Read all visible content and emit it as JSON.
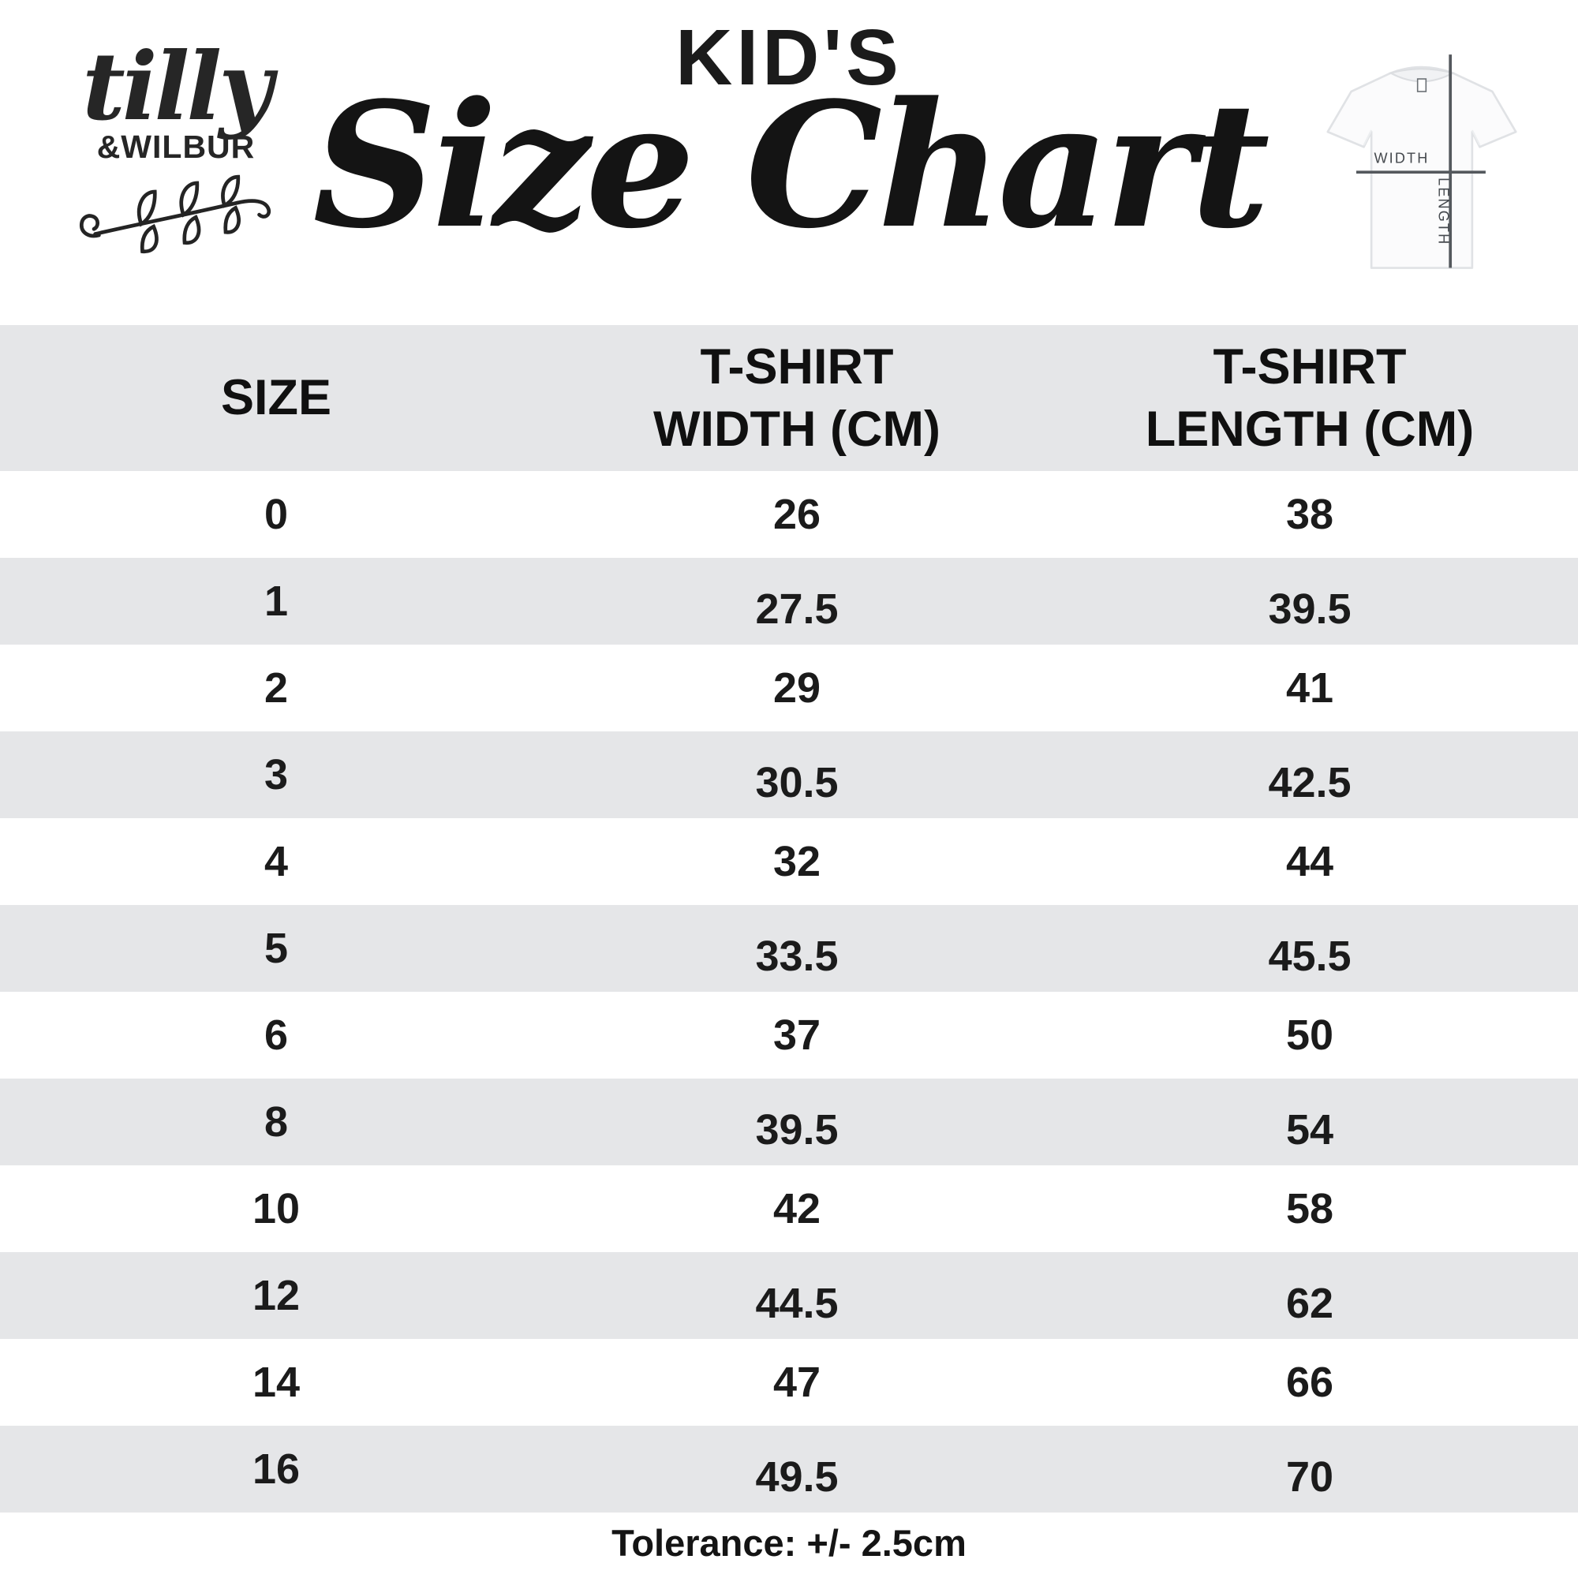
{
  "brand": {
    "name": "tilly",
    "subname": "&WILBUR"
  },
  "header": {
    "kicker": "KID'S",
    "title": "Size Chart"
  },
  "diagram": {
    "width_label": "WIDTH",
    "length_label": "LENGTH"
  },
  "table": {
    "columns": [
      "SIZE",
      "T-SHIRT\nWIDTH (CM)",
      "T-SHIRT\nLENGTH (CM)"
    ],
    "rows": [
      {
        "size": "0",
        "width": "26",
        "length": "38"
      },
      {
        "size": "1",
        "width": "27.5",
        "length": "39.5"
      },
      {
        "size": "2",
        "width": "29",
        "length": "41"
      },
      {
        "size": "3",
        "width": "30.5",
        "length": "42.5"
      },
      {
        "size": "4",
        "width": "32",
        "length": "44"
      },
      {
        "size": "5",
        "width": "33.5",
        "length": "45.5"
      },
      {
        "size": "6",
        "width": "37",
        "length": "50"
      },
      {
        "size": "8",
        "width": "39.5",
        "length": "54"
      },
      {
        "size": "10",
        "width": "42",
        "length": "58"
      },
      {
        "size": "12",
        "width": "44.5",
        "length": "62"
      },
      {
        "size": "14",
        "width": "47",
        "length": "66"
      },
      {
        "size": "16",
        "width": "49.5",
        "length": "70"
      }
    ]
  },
  "footer": {
    "tolerance": "Tolerance: +/- 2.5cm"
  },
  "colors": {
    "background": "#ffffff",
    "text": "#161616",
    "row_alt": "#e5e6e8",
    "diagram_line": "#54585d",
    "tee_outline": "#e0e2e5"
  },
  "chart_data": {
    "type": "table",
    "title": "KID'S Size Chart",
    "columns": [
      "SIZE",
      "T-SHIRT WIDTH (CM)",
      "T-SHIRT LENGTH (CM)"
    ],
    "rows": [
      [
        0,
        26,
        38
      ],
      [
        1,
        27.5,
        39.5
      ],
      [
        2,
        29,
        41
      ],
      [
        3,
        30.5,
        42.5
      ],
      [
        4,
        32,
        44
      ],
      [
        5,
        33.5,
        45.5
      ],
      [
        6,
        37,
        50
      ],
      [
        8,
        39.5,
        54
      ],
      [
        10,
        42,
        58
      ],
      [
        12,
        44.5,
        62
      ],
      [
        14,
        47,
        66
      ],
      [
        16,
        49.5,
        70
      ]
    ],
    "note": "Tolerance: +/- 2.5cm"
  }
}
